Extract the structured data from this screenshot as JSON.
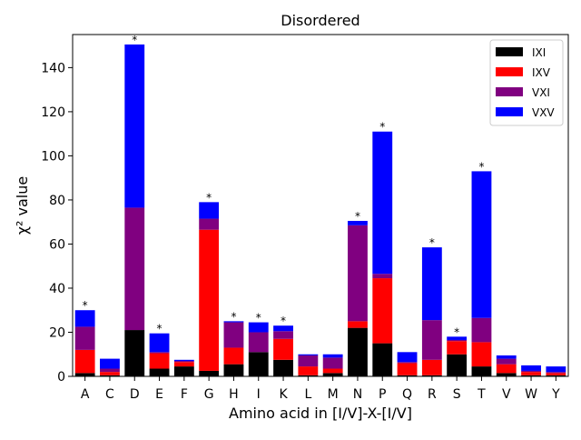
{
  "chart_data": {
    "type": "bar",
    "stacked": true,
    "title": "Disordered",
    "xlabel": "Amino acid in [I/V]-X-[I/V]",
    "ylabel": "χ² value",
    "ylim": [
      0,
      155
    ],
    "yticks": [
      0,
      20,
      40,
      60,
      80,
      100,
      120,
      140
    ],
    "grid": false,
    "legend_position": "top-right",
    "categories": [
      "A",
      "C",
      "D",
      "E",
      "F",
      "G",
      "H",
      "I",
      "K",
      "L",
      "M",
      "N",
      "P",
      "Q",
      "R",
      "S",
      "T",
      "V",
      "W",
      "Y"
    ],
    "series": [
      {
        "name": "IXI",
        "color": "#000000",
        "values": [
          1.5,
          0.5,
          21,
          3.5,
          4.5,
          2.5,
          5.5,
          11,
          7.5,
          0.5,
          1.5,
          22,
          15,
          0.5,
          0.5,
          10,
          4.5,
          1.5,
          0.5,
          0.5
        ]
      },
      {
        "name": "IXV",
        "color": "#ff0000",
        "values": [
          10.5,
          1.5,
          0,
          7,
          2,
          64,
          7.5,
          0,
          9.5,
          4,
          2,
          3,
          29.5,
          5.5,
          7,
          6,
          11,
          4,
          1.5,
          1
        ]
      },
      {
        "name": "VXI",
        "color": "#800080",
        "values": [
          10.5,
          1.5,
          55.5,
          0.5,
          0.5,
          5,
          11.5,
          9,
          3.5,
          5,
          5,
          43.5,
          2,
          0.5,
          18,
          0.5,
          11,
          2.5,
          0.5,
          0.5
        ]
      },
      {
        "name": "VXV",
        "color": "#0000ff",
        "values": [
          7.5,
          4.5,
          74,
          8.5,
          0.5,
          7.5,
          0.5,
          4.5,
          2.5,
          0.5,
          1.5,
          2,
          64.5,
          4.5,
          33,
          1.5,
          66.5,
          1.5,
          2.5,
          2.5
        ]
      }
    ],
    "significant": [
      "A",
      "D",
      "E",
      "G",
      "H",
      "I",
      "K",
      "N",
      "P",
      "R",
      "S",
      "T"
    ],
    "significance_marker": "*"
  }
}
